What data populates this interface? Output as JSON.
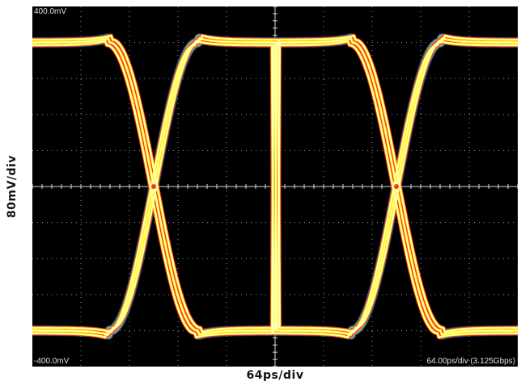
{
  "chart_data": {
    "type": "eye_diagram",
    "title": "",
    "xlabel": "64ps/div",
    "ylabel": "80mV/div",
    "top_reference": "400.0mV",
    "bottom_reference": "-400.0mV",
    "timebase_readout": "64.00ps/div (3.125Gbps)",
    "units": {
      "x": "ps",
      "y": "mV"
    },
    "xlim": [
      0,
      640
    ],
    "ylim": [
      -400,
      400
    ],
    "x_divisions": 10,
    "y_divisions": 10,
    "grid": true,
    "bit_rate_gbps": 3.125,
    "unit_interval_ps": 320,
    "high_level_mV": 320,
    "low_level_mV": -320,
    "crossings": [
      {
        "time_ps": 160,
        "level_mV": 0
      },
      {
        "time_ps": 480,
        "level_mV": 0
      }
    ],
    "transition_half_width_ps": 58,
    "density_colors": [
      "#3a6ad8",
      "#4fc08a",
      "#d4d040",
      "#ff30a0",
      "#ff3030",
      "#ffff20",
      "#ffffff"
    ]
  }
}
